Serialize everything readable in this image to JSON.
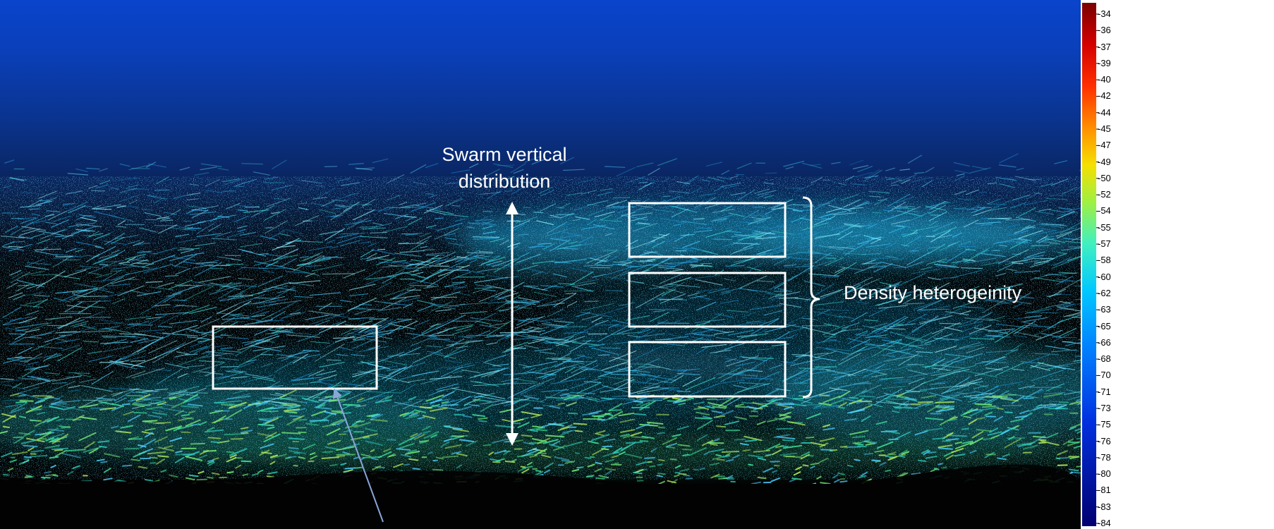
{
  "annotations": {
    "swarm_label_line1": "Swarm vertical",
    "swarm_label_line2": "distribution",
    "density_label": "Density heterogeinity"
  },
  "color_scale": {
    "labels": [
      "-34",
      "-36",
      "-37",
      "-39",
      "-40",
      "-42",
      "-44",
      "-45",
      "-47",
      "-49",
      "-50",
      "-52",
      "-54",
      "-55",
      "-57",
      "-58",
      "-60",
      "-62",
      "-63",
      "-65",
      "-66",
      "-68",
      "-70",
      "-71",
      "-73",
      "-75",
      "-76",
      "-78",
      "-80",
      "-81",
      "-83",
      "-84"
    ],
    "colors_top_to_bottom": [
      "#7a0000",
      "#d40000",
      "#ff3000",
      "#ff9000",
      "#f5e000",
      "#a0f040",
      "#40f0c0",
      "#00c8ff",
      "#0080ff",
      "#0030e0",
      "#000070"
    ]
  },
  "colors": {
    "water_top": "#0a42c8",
    "water_mid": "#0a2a78",
    "water_dark": "#04121e",
    "background_black": "#020202",
    "annotation_white": "#ffffff",
    "pointer_arrow": "#8aa6d8"
  }
}
